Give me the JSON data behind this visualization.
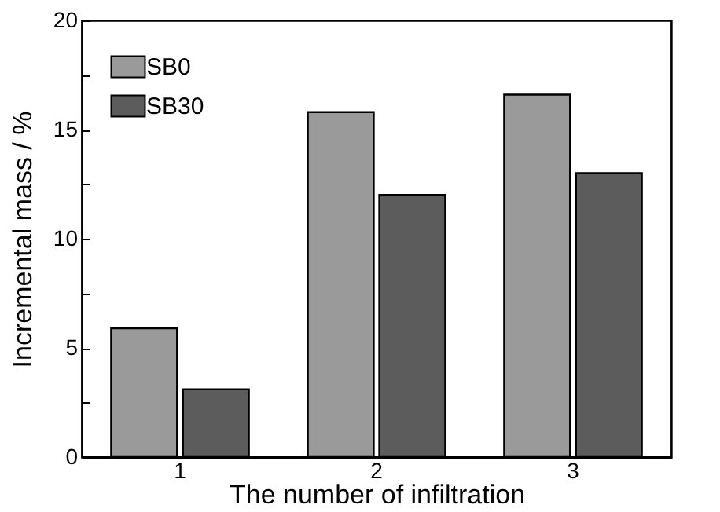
{
  "chart_data": {
    "type": "bar",
    "xlabel": "The number of infiltration",
    "ylabel": "Incremental mass / %",
    "categories": [
      "1",
      "2",
      "3"
    ],
    "series": [
      {
        "name": "SB0",
        "color": "#9a9a9a",
        "values": [
          5.9,
          15.8,
          16.6
        ]
      },
      {
        "name": "SB30",
        "color": "#5c5c5c",
        "values": [
          3.1,
          12.0,
          13.0
        ]
      }
    ],
    "ylim": [
      0,
      20
    ],
    "yticks": [
      0,
      {
        "value": 2.5,
        "label": null
      },
      5,
      {
        "value": 7.5,
        "label": null
      },
      10,
      {
        "value": 12.5,
        "label": null
      },
      15,
      {
        "value": 17.5,
        "label": null
      },
      20
    ],
    "grid": false,
    "legend": "top left"
  }
}
